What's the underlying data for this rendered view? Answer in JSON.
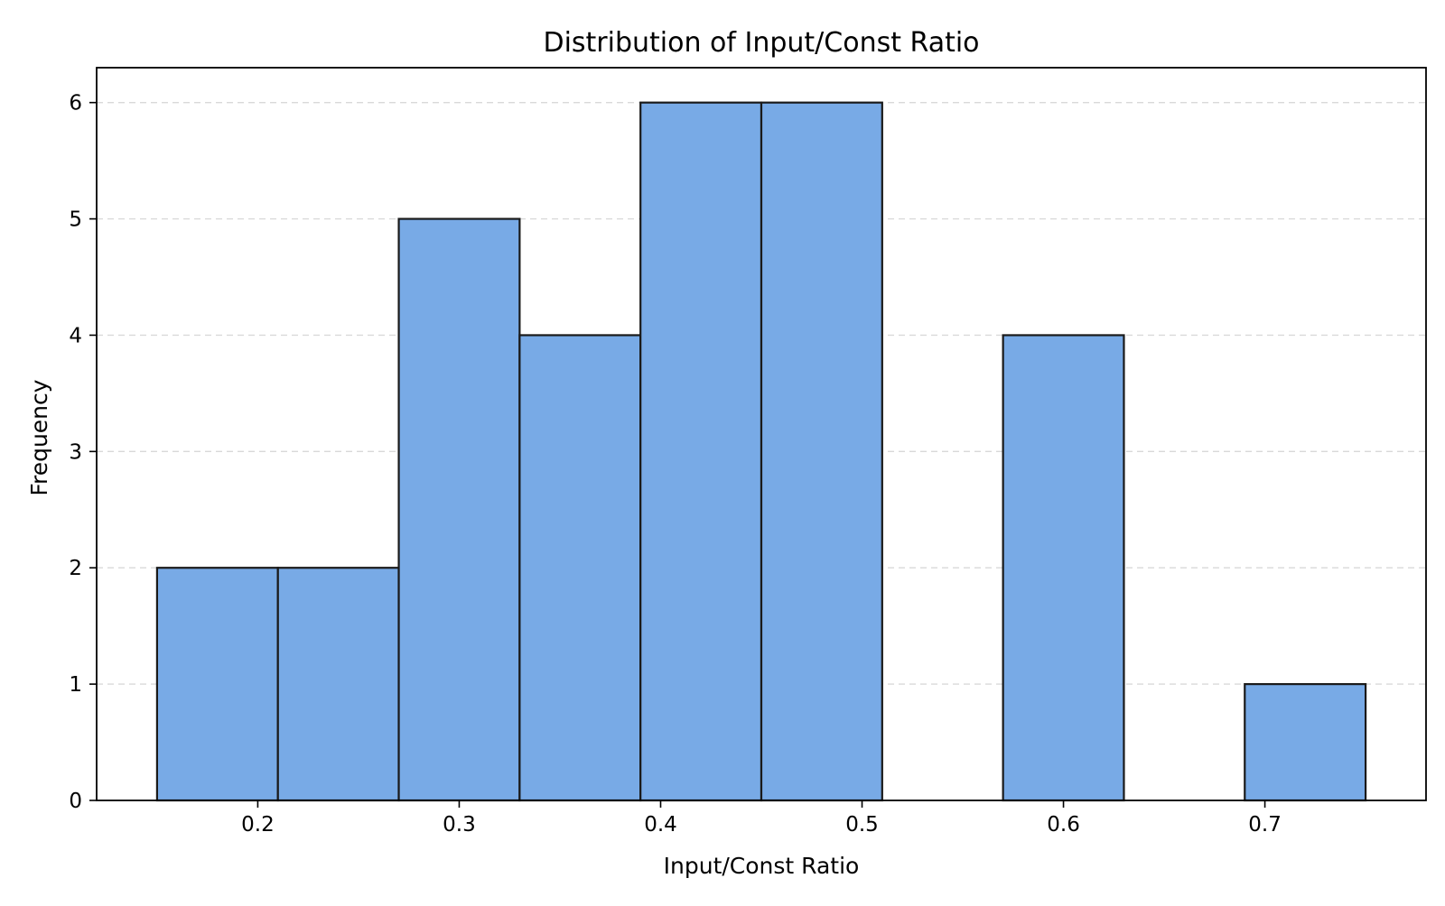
{
  "chart_data": {
    "type": "bar",
    "title": "Distribution of Input/Const Ratio",
    "xlabel": "Input/Const Ratio",
    "ylabel": "Frequency",
    "bins": [
      {
        "start": 0.15,
        "end": 0.21,
        "count": 2
      },
      {
        "start": 0.21,
        "end": 0.27,
        "count": 2
      },
      {
        "start": 0.27,
        "end": 0.33,
        "count": 5
      },
      {
        "start": 0.33,
        "end": 0.39,
        "count": 4
      },
      {
        "start": 0.39,
        "end": 0.45,
        "count": 6
      },
      {
        "start": 0.45,
        "end": 0.51,
        "count": 6
      },
      {
        "start": 0.51,
        "end": 0.57,
        "count": 0
      },
      {
        "start": 0.57,
        "end": 0.63,
        "count": 4
      },
      {
        "start": 0.63,
        "end": 0.69,
        "count": 0
      },
      {
        "start": 0.69,
        "end": 0.75,
        "count": 1
      }
    ],
    "xlim": [
      0.12,
      0.78
    ],
    "ylim": [
      0,
      6.3
    ],
    "xticks": [
      0.2,
      0.3,
      0.4,
      0.5,
      0.6,
      0.7
    ],
    "xtick_labels": [
      "0.2",
      "0.3",
      "0.4",
      "0.5",
      "0.6",
      "0.7"
    ],
    "yticks": [
      0,
      1,
      2,
      3,
      4,
      5,
      6
    ],
    "ytick_labels": [
      "0",
      "1",
      "2",
      "3",
      "4",
      "5",
      "6"
    ],
    "grid": {
      "axis": "y",
      "style": "dashed"
    },
    "colors": {
      "bar_fill": "#78aae6",
      "bar_edge": "#1a1a1a",
      "grid": "#d9d9d9",
      "axes": "#000000"
    }
  }
}
